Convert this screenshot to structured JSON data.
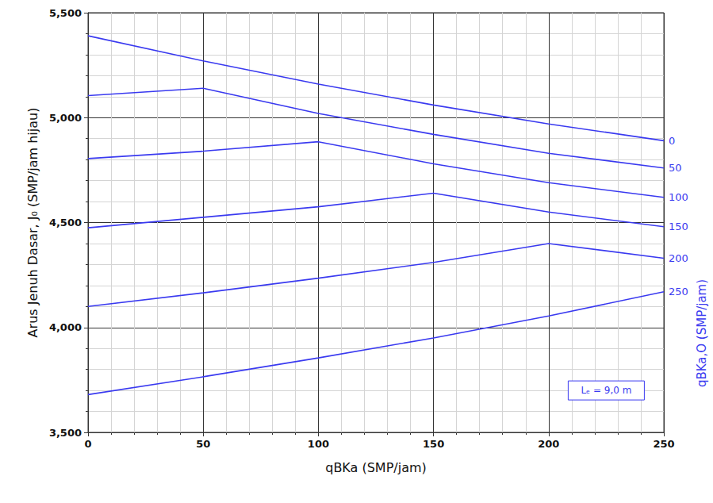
{
  "chart_data": {
    "type": "line",
    "x_label": "qBKa (SMP/jam)",
    "y_label": "Arus Jenuh Dasar, J₀ (SMP/jam hijau)",
    "legend_title": "qBKa,O (SMP/jam)",
    "annotations": [
      "Lₑ = 9,0 m"
    ],
    "x": [
      0,
      50,
      100,
      150,
      200,
      250
    ],
    "series": [
      {
        "name": "0",
        "color": "#3a3af0",
        "values": [
          5390,
          5270,
          5160,
          5060,
          4970,
          4890
        ]
      },
      {
        "name": "50",
        "color": "#3a3af0",
        "values": [
          5105,
          5140,
          5020,
          4920,
          4830,
          4760
        ]
      },
      {
        "name": "100",
        "color": "#3a3af0",
        "values": [
          4805,
          4840,
          4885,
          4780,
          4690,
          4620
        ]
      },
      {
        "name": "150",
        "color": "#3a3af0",
        "values": [
          4475,
          4525,
          4575,
          4640,
          4550,
          4480
        ]
      },
      {
        "name": "200",
        "color": "#3a3af0",
        "values": [
          4100,
          4165,
          4235,
          4310,
          4400,
          4330
        ]
      },
      {
        "name": "250",
        "color": "#3a3af0",
        "values": [
          3680,
          3765,
          3855,
          3950,
          4055,
          4170
        ]
      }
    ],
    "xlim": [
      0,
      250
    ],
    "xticks": [
      0,
      50,
      100,
      150,
      200,
      250
    ],
    "ylim": [
      3500,
      5500
    ],
    "yticks": [
      3500,
      4000,
      4500,
      5000,
      5500
    ],
    "grid": true
  }
}
